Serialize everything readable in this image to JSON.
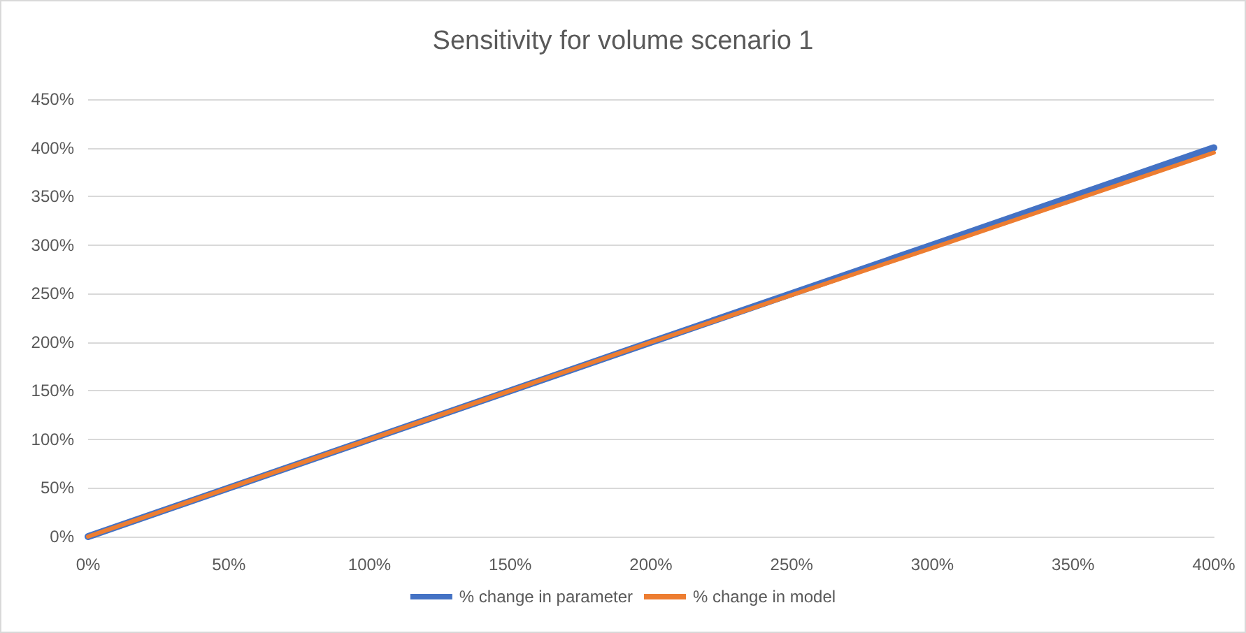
{
  "chart_data": {
    "type": "line",
    "title": "Sensitivity for volume scenario 1",
    "x": [
      0,
      100,
      200,
      300,
      400
    ],
    "series": [
      {
        "name": "% change in parameter",
        "color": "#4472c4",
        "values": [
          0,
          100,
          200,
          300,
          400
        ]
      },
      {
        "name": "% change in model",
        "color": "#ed7d31",
        "values": [
          0,
          100,
          200,
          297,
          395
        ]
      }
    ],
    "xlim": [
      0,
      400
    ],
    "xticks": [
      {
        "value": 0,
        "label": "0%"
      },
      {
        "value": 50,
        "label": "50%"
      },
      {
        "value": 100,
        "label": "100%"
      },
      {
        "value": 150,
        "label": "150%"
      },
      {
        "value": 200,
        "label": "200%"
      },
      {
        "value": 250,
        "label": "250%"
      },
      {
        "value": 300,
        "label": "300%"
      },
      {
        "value": 350,
        "label": "350%"
      },
      {
        "value": 400,
        "label": "400%"
      }
    ],
    "ylim": [
      0,
      450
    ],
    "yticks": [
      {
        "value": 0,
        "label": "0%"
      },
      {
        "value": 50,
        "label": "50%"
      },
      {
        "value": 100,
        "label": "100%"
      },
      {
        "value": 150,
        "label": "150%"
      },
      {
        "value": 200,
        "label": "200%"
      },
      {
        "value": 250,
        "label": "250%"
      },
      {
        "value": 300,
        "label": "300%"
      },
      {
        "value": 350,
        "label": "350%"
      },
      {
        "value": 400,
        "label": "400%"
      },
      {
        "value": 450,
        "label": "450%"
      }
    ],
    "grid": "y",
    "legend": "bottom",
    "marker": "none",
    "line_style": "solid"
  }
}
